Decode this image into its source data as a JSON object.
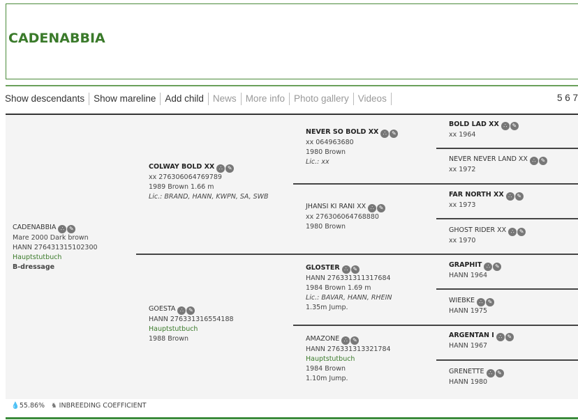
{
  "title": "CADENABBIA",
  "nav": [
    {
      "label": "Show descendants",
      "enabled": true
    },
    {
      "label": "Show mareline",
      "enabled": true
    },
    {
      "label": "Add child",
      "enabled": true
    },
    {
      "label": "News",
      "enabled": false
    },
    {
      "label": "More info",
      "enabled": false
    },
    {
      "label": "Photo gallery",
      "enabled": false
    },
    {
      "label": "Videos",
      "enabled": false
    }
  ],
  "generations": "5 6 7",
  "pedigree": [
    {
      "gen": 0,
      "name": "CADENABBIA",
      "bold": false,
      "lines": [
        {
          "t": "Mare 2000 Dark brown"
        },
        {
          "t": "HANN 276431315102300"
        },
        {
          "t": "Hauptstutbuch",
          "s": "green"
        },
        {
          "t": "B-dressage",
          "s": "bold"
        }
      ]
    },
    {
      "gen": 1,
      "name": "COLWAY BOLD XX",
      "bold": true,
      "lines": [
        {
          "t": "xx 276306064769789"
        },
        {
          "t": "1989 Brown 1.66 m"
        },
        {
          "t": "Lic.: BRAND, HANN, KWPN, SA, SWB",
          "s": "it"
        }
      ]
    },
    {
      "gen": 1,
      "name": "GOESTA",
      "bold": false,
      "lines": [
        {
          "t": "HANN 276331316554188"
        },
        {
          "t": "Hauptstutbuch",
          "s": "green"
        },
        {
          "t": "1988 Brown"
        }
      ]
    },
    {
      "gen": 2,
      "name": "NEVER SO BOLD XX",
      "bold": true,
      "lines": [
        {
          "t": "xx 064963680"
        },
        {
          "t": "1980 Brown"
        },
        {
          "t": "Lic.: xx",
          "s": "it"
        }
      ]
    },
    {
      "gen": 2,
      "name": "JHANSI KI RANI XX",
      "bold": false,
      "lines": [
        {
          "t": "xx 276306064768880"
        },
        {
          "t": "1980 Brown"
        }
      ]
    },
    {
      "gen": 2,
      "name": "GLOSTER",
      "bold": true,
      "lines": [
        {
          "t": "HANN 276331311317684"
        },
        {
          "t": "1984 Brown 1.69 m"
        },
        {
          "t": "Lic.: BAVAR, HANN, RHEIN",
          "s": "it"
        },
        {
          "t": "1.35m Jump."
        }
      ]
    },
    {
      "gen": 2,
      "name": "AMAZONE",
      "bold": false,
      "lines": [
        {
          "t": "HANN 276331313321784"
        },
        {
          "t": "Hauptstutbuch",
          "s": "green"
        },
        {
          "t": "1984 Brown"
        },
        {
          "t": "1.10m Jump."
        }
      ]
    },
    {
      "gen": 3,
      "name": "BOLD LAD XX",
      "bold": true,
      "lines": [
        {
          "t": "xx 1964"
        }
      ]
    },
    {
      "gen": 3,
      "name": "NEVER NEVER LAND XX",
      "bold": false,
      "lines": [
        {
          "t": "xx 1972"
        }
      ]
    },
    {
      "gen": 3,
      "name": "FAR NORTH XX",
      "bold": true,
      "lines": [
        {
          "t": "xx 1973"
        }
      ]
    },
    {
      "gen": 3,
      "name": "GHOST RIDER XX",
      "bold": false,
      "lines": [
        {
          "t": "xx 1970"
        }
      ]
    },
    {
      "gen": 3,
      "name": "GRAPHIT",
      "bold": true,
      "lines": [
        {
          "t": "HANN 1964"
        }
      ]
    },
    {
      "gen": 3,
      "name": "WIEBKE",
      "bold": false,
      "lines": [
        {
          "t": "HANN 1975"
        }
      ]
    },
    {
      "gen": 3,
      "name": "ARGENTAN I",
      "bold": true,
      "lines": [
        {
          "t": "HANN 1967"
        }
      ]
    },
    {
      "gen": 3,
      "name": "GRENETTE",
      "bold": false,
      "lines": [
        {
          "t": "HANN 1980"
        }
      ]
    }
  ],
  "icons": {
    "descendants": "pedigree-tree-icon",
    "edit": "pencil-icon",
    "inbreeding": "drop-percent-icon",
    "horse": "horse-icon"
  },
  "footer": {
    "coefficient": "55.86%",
    "label": "INBREEDING COEFFICIENT"
  },
  "colors": {
    "accent": "#3a7a2a",
    "background": "#f4f4f4"
  }
}
